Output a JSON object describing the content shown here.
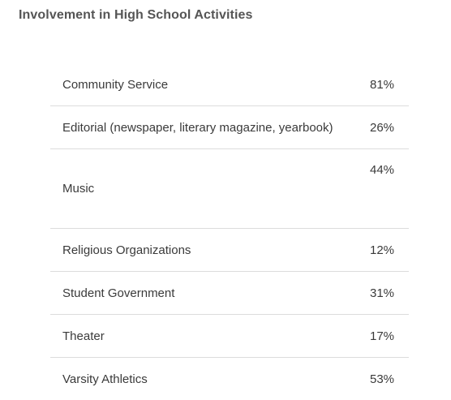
{
  "title": "Involvement in High School Activities",
  "activities": [
    {
      "name": "Community Service",
      "percent": "81%"
    },
    {
      "name": "Editorial (newspaper, literary magazine, yearbook)",
      "percent": "26%"
    },
    {
      "name": "Music",
      "percent": "44%"
    },
    {
      "name": "Religious Organizations",
      "percent": "12%"
    },
    {
      "name": "Student Government",
      "percent": "31%"
    },
    {
      "name": "Theater",
      "percent": "17%"
    },
    {
      "name": "Varsity Athletics",
      "percent": "53%"
    }
  ]
}
